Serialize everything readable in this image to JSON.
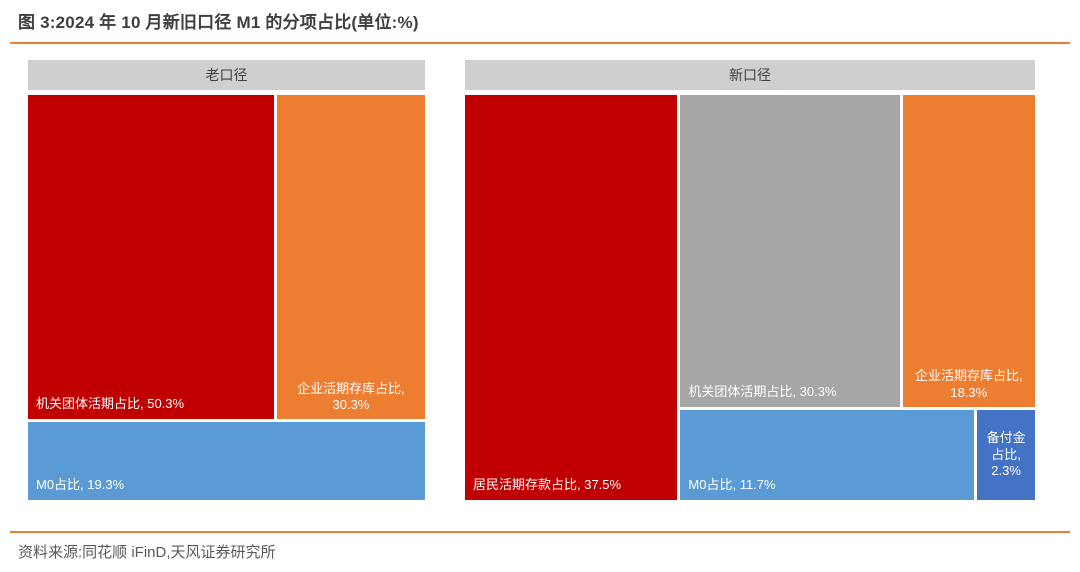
{
  "title": "图 3:2024 年 10 月新旧口径 M1 的分项占比(单位:%)",
  "source": "资料来源:同花顺 iFinD,天风证券研究所",
  "colors": {
    "red": "#C00000",
    "orange": "#ED7D31",
    "blue": "#5B9BD5",
    "dark_blue": "#4472C4",
    "gray": "#A6A6A6",
    "header_bg": "#D0CECE",
    "accent_line": "#ED7D31",
    "title_text": "#3F3F3F",
    "source_text": "#595959"
  },
  "chart_data": [
    {
      "type": "treemap",
      "title": "老口径",
      "unit": "%",
      "items": [
        {
          "name": "机关团体活期占比",
          "value": 50.3,
          "color": "#C00000",
          "label": "机关团体活期占比, 50.3%"
        },
        {
          "name": "企业活期存库占比",
          "value": 30.3,
          "color": "#ED7D31",
          "label": "企业活期存库占比,\n30.3%"
        },
        {
          "name": "M0占比",
          "value": 19.3,
          "color": "#5B9BD5",
          "label": "M0占比, 19.3%"
        }
      ]
    },
    {
      "type": "treemap",
      "title": "新口径",
      "unit": "%",
      "items": [
        {
          "name": "居民活期存款占比",
          "value": 37.5,
          "color": "#C00000",
          "label": "居民活期存款占比, 37.5%"
        },
        {
          "name": "机关团体活期占比",
          "value": 30.3,
          "color": "#A6A6A6",
          "label": "机关团体活期占比, 30.3%"
        },
        {
          "name": "企业活期存库占比",
          "value": 18.3,
          "color": "#ED7D31",
          "label": "企业活期存库占比,\n18.3%"
        },
        {
          "name": "M0占比",
          "value": 11.7,
          "color": "#5B9BD5",
          "label": "M0占比, 11.7%"
        },
        {
          "name": "备付金占比",
          "value": 2.3,
          "color": "#4472C4",
          "label": "备付金\n占比,\n2.3%"
        }
      ]
    }
  ]
}
